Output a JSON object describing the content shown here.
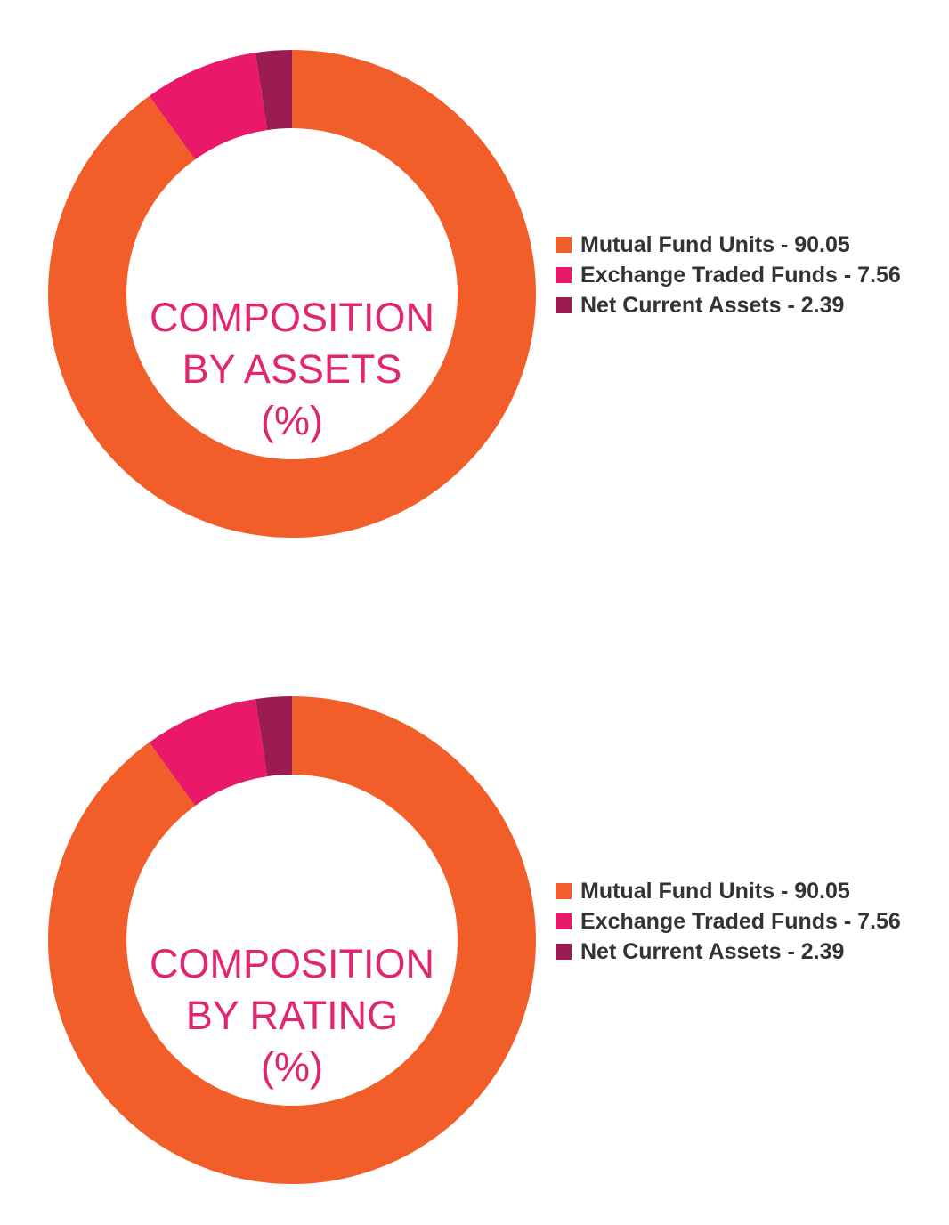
{
  "colors": {
    "mutual_fund_units": "#f15e2a",
    "exchange_traded_funds": "#ea1869",
    "net_current_assets": "#9b1b53",
    "title": "#e0266f",
    "legend_text": "#333333"
  },
  "chart_data": [
    {
      "type": "pie",
      "style": "donut",
      "title_lines": [
        "COMPOSITION",
        "BY ASSETS",
        "(%)"
      ],
      "legend_placement": "right",
      "series": [
        {
          "name": "Mutual Fund Units",
          "value": 90.05,
          "label": "Mutual Fund Units - 90.05",
          "color": "#f15e2a"
        },
        {
          "name": "Exchange Traded Funds",
          "value": 7.56,
          "label": "Exchange Traded Funds - 7.56",
          "color": "#ea1869"
        },
        {
          "name": "Net Current Assets",
          "value": 2.39,
          "label": "Net Current Assets - 2.39",
          "color": "#9b1b53"
        }
      ]
    },
    {
      "type": "pie",
      "style": "donut",
      "title_lines": [
        "COMPOSITION",
        "BY RATING",
        "(%)"
      ],
      "legend_placement": "right",
      "series": [
        {
          "name": "Mutual Fund Units",
          "value": 90.05,
          "label": "Mutual Fund Units - 90.05",
          "color": "#f15e2a"
        },
        {
          "name": "Exchange Traded Funds",
          "value": 7.56,
          "label": "Exchange Traded Funds - 7.56",
          "color": "#ea1869"
        },
        {
          "name": "Net Current Assets",
          "value": 2.39,
          "label": "Net Current Assets - 2.39",
          "color": "#9b1b53"
        }
      ]
    }
  ]
}
